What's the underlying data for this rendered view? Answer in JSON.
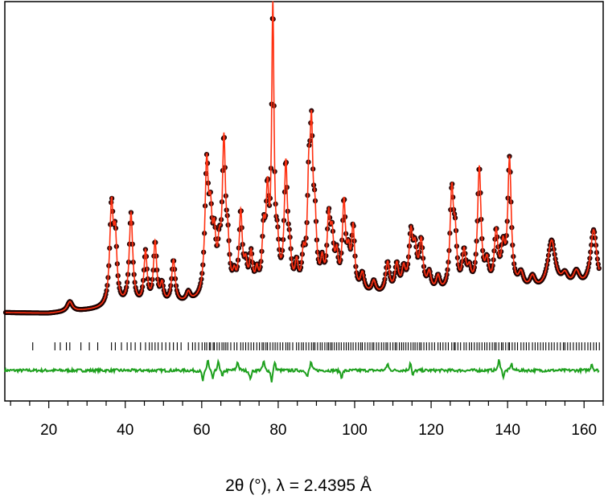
{
  "chart_data": {
    "type": "scatter",
    "title": "",
    "xlabel": "2θ (°), λ = 2.4395 Å",
    "ylabel": "",
    "xlim": [
      8.5,
      165
    ],
    "ylim": [
      0,
      100
    ],
    "x_ticks": [
      20,
      40,
      60,
      80,
      100,
      120,
      140,
      160
    ],
    "x_minor_step": 5,
    "grid": false,
    "legend": "none",
    "colors": {
      "observed_fill": "#5a1010",
      "observed_edge": "#1a0000",
      "calculated": "#ff3010",
      "difference": "#1ea01e",
      "reflections": "#000000",
      "frame": "#000000"
    },
    "series": [
      {
        "role": "observed",
        "marker": "open-circle",
        "background": [
          [
            8.5,
            6.8
          ],
          [
            20,
            6.5
          ],
          [
            30,
            7.4
          ],
          [
            40,
            8.2
          ],
          [
            50,
            8.8
          ],
          [
            60,
            9.8
          ],
          [
            70,
            11.0
          ],
          [
            80,
            11.8
          ],
          [
            90,
            12.2
          ],
          [
            100,
            12.2
          ],
          [
            110,
            12.0
          ],
          [
            120,
            12.0
          ],
          [
            130,
            12.4
          ],
          [
            140,
            13.0
          ],
          [
            150,
            13.5
          ],
          [
            165,
            14.5
          ]
        ],
        "peaks": [
          [
            25.5,
            3.2,
            0.8
          ],
          [
            36.4,
            32,
            0.55
          ],
          [
            37.4,
            20,
            0.5
          ],
          [
            41.5,
            30,
            0.55
          ],
          [
            45.3,
            17,
            0.5
          ],
          [
            47.8,
            20,
            0.5
          ],
          [
            49.6,
            6,
            0.5
          ],
          [
            52.6,
            14,
            0.55
          ],
          [
            56.5,
            3,
            0.6
          ],
          [
            61.3,
            42,
            0.55
          ],
          [
            62.3,
            21,
            0.5
          ],
          [
            63.3,
            16,
            0.5
          ],
          [
            64.6,
            12,
            0.5
          ],
          [
            65.8,
            48,
            0.5
          ],
          [
            66.8,
            14,
            0.5
          ],
          [
            68.5,
            5,
            0.5
          ],
          [
            70.2,
            26,
            0.5
          ],
          [
            71.5,
            8,
            0.5
          ],
          [
            72.9,
            12,
            0.5
          ],
          [
            74.4,
            6,
            0.5
          ],
          [
            76.2,
            18,
            0.5
          ],
          [
            77.2,
            28,
            0.45
          ],
          [
            78.6,
            90,
            0.38
          ],
          [
            79.8,
            12,
            0.5
          ],
          [
            82.0,
            40,
            0.5
          ],
          [
            83.0,
            10,
            0.5
          ],
          [
            84.8,
            8,
            0.5
          ],
          [
            86.6,
            10,
            0.5
          ],
          [
            88.0,
            30,
            0.45
          ],
          [
            88.7,
            45,
            0.45
          ],
          [
            89.6,
            20,
            0.5
          ],
          [
            91.5,
            8,
            0.5
          ],
          [
            93.2,
            22,
            0.5
          ],
          [
            94.1,
            15,
            0.5
          ],
          [
            95.3,
            10,
            0.5
          ],
          [
            97.2,
            28,
            0.5
          ],
          [
            98.4,
            10,
            0.5
          ],
          [
            99.6,
            20,
            0.5
          ],
          [
            102.0,
            6,
            0.6
          ],
          [
            105.0,
            4,
            0.6
          ],
          [
            108.6,
            10,
            0.6
          ],
          [
            111.0,
            9,
            0.6
          ],
          [
            112.8,
            7,
            0.6
          ],
          [
            114.7,
            18,
            0.6
          ],
          [
            115.8,
            12,
            0.6
          ],
          [
            117.4,
            16,
            0.6
          ],
          [
            119.5,
            6,
            0.6
          ],
          [
            121.8,
            5,
            0.6
          ],
          [
            125.4,
            32,
            0.55
          ],
          [
            126.3,
            15,
            0.5
          ],
          [
            128.6,
            12,
            0.6
          ],
          [
            130.0,
            6,
            0.6
          ],
          [
            132.6,
            40,
            0.55
          ],
          [
            134.6,
            8,
            0.6
          ],
          [
            137.0,
            18,
            0.6
          ],
          [
            138.8,
            12,
            0.6
          ],
          [
            140.5,
            42,
            0.55
          ],
          [
            143.5,
            5,
            0.8
          ],
          [
            146.5,
            4,
            0.8
          ],
          [
            151.5,
            16,
            1.2
          ],
          [
            155.0,
            4,
            1.0
          ],
          [
            158.0,
            5,
            1.0
          ],
          [
            162.5,
            19,
            1.0
          ]
        ]
      },
      {
        "role": "calculated",
        "line": "solid"
      },
      {
        "role": "difference",
        "line": "solid",
        "spikes": [
          [
            60.3,
            -5
          ],
          [
            61.6,
            5
          ],
          [
            62.9,
            -4
          ],
          [
            64.4,
            4
          ],
          [
            65.4,
            -3
          ],
          [
            69.4,
            4
          ],
          [
            72.7,
            -4
          ],
          [
            76.2,
            4
          ],
          [
            78.3,
            -5
          ],
          [
            79.1,
            4
          ],
          [
            87.6,
            -3
          ],
          [
            88.6,
            4
          ],
          [
            96.6,
            -3
          ],
          [
            108.6,
            3
          ],
          [
            114.6,
            4
          ],
          [
            115.2,
            -3
          ],
          [
            137.8,
            5
          ],
          [
            138.9,
            -3
          ],
          [
            141.0,
            3
          ],
          [
            162.0,
            3
          ]
        ]
      },
      {
        "role": "reflection_markers",
        "positions": [
          15.8,
          21.6,
          23.0,
          24.6,
          25.5,
          28.4,
          30.6,
          32.8,
          36.4,
          37.4,
          39.0,
          40.5,
          41.5,
          42.6,
          44.0,
          45.3,
          46.3,
          47.0,
          47.8,
          48.6,
          49.6,
          50.6,
          51.6,
          52.6,
          53.6,
          54.6,
          56.5,
          57.6,
          58.3,
          59.2,
          60.1,
          60.8,
          61.3,
          62.0,
          62.3,
          63.0,
          63.3,
          64.0,
          64.6,
          65.3,
          65.8,
          66.3,
          66.8,
          67.6,
          68.5,
          69.2,
          70.2,
          70.8,
          71.5,
          72.2,
          72.9,
          73.6,
          74.4,
          75.1,
          75.8,
          76.2,
          76.8,
          77.2,
          77.9,
          78.6,
          79.2,
          79.8,
          80.5,
          81.2,
          82.0,
          82.5,
          83.0,
          83.8,
          84.8,
          85.4,
          86.1,
          86.6,
          87.3,
          88.0,
          88.7,
          89.2,
          89.6,
          90.3,
          91.0,
          91.5,
          92.2,
          92.8,
          93.2,
          93.7,
          94.1,
          94.7,
          95.3,
          95.9,
          96.5,
          97.2,
          97.8,
          98.4,
          99.0,
          99.6,
          100.3,
          101.0,
          101.6,
          102.0,
          102.7,
          103.4,
          104.0,
          104.6,
          105.0,
          105.7,
          106.3,
          107.0,
          107.6,
          108.2,
          108.6,
          109.3,
          110.0,
          110.6,
          111.0,
          111.7,
          112.3,
          112.8,
          113.4,
          114.0,
          114.7,
          115.3,
          115.8,
          116.4,
          117.0,
          117.4,
          118.1,
          118.8,
          119.5,
          120.2,
          120.9,
          121.8,
          122.4,
          123.1,
          123.8,
          124.5,
          125.4,
          126.0,
          126.3,
          127.0,
          127.7,
          128.6,
          129.2,
          130.0,
          130.6,
          131.3,
          132.0,
          132.6,
          133.3,
          134.0,
          134.6,
          135.3,
          136.0,
          136.6,
          137.0,
          137.7,
          138.4,
          138.8,
          139.5,
          140.2,
          140.5,
          141.2,
          141.9,
          142.6,
          143.5,
          144.2,
          144.9,
          145.6,
          146.5,
          147.2,
          147.9,
          148.6,
          149.3,
          150.0,
          150.8,
          151.5,
          152.2,
          153.0,
          153.8,
          154.6,
          155.0,
          155.7,
          156.4,
          157.2,
          158.0,
          158.7,
          159.4,
          160.2,
          161.0,
          161.7,
          162.5,
          163.2,
          164.0
        ]
      }
    ]
  }
}
